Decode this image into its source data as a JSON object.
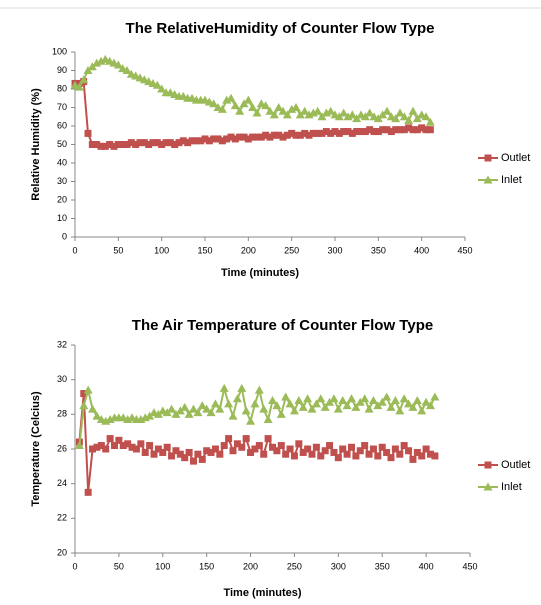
{
  "chart_data": [
    {
      "type": "line",
      "title": "The RelativeHumidity of Counter Flow Type",
      "x_label": "Time (minutes)",
      "y_label": "Relative Humidity (%)",
      "x": [
        0,
        5,
        10,
        15,
        20,
        25,
        30,
        35,
        40,
        45,
        50,
        55,
        60,
        65,
        70,
        75,
        80,
        85,
        90,
        95,
        100,
        105,
        110,
        115,
        120,
        125,
        130,
        135,
        140,
        145,
        150,
        155,
        160,
        165,
        170,
        175,
        180,
        185,
        190,
        195,
        200,
        205,
        210,
        215,
        220,
        225,
        230,
        235,
        240,
        245,
        250,
        255,
        260,
        265,
        270,
        275,
        280,
        285,
        290,
        295,
        300,
        305,
        310,
        315,
        320,
        325,
        330,
        335,
        340,
        345,
        350,
        355,
        360,
        365,
        370,
        375,
        380,
        385,
        390,
        395,
        400,
        405,
        410
      ],
      "series": [
        {
          "name": "Outlet",
          "color": "#c0504d",
          "marker": "square",
          "values": [
            83,
            83,
            84,
            56,
            50,
            50,
            49,
            49,
            50,
            49,
            50,
            50,
            50,
            51,
            50,
            51,
            51,
            50,
            51,
            51,
            50,
            51,
            51,
            50,
            51,
            52,
            51,
            52,
            52,
            52,
            53,
            52,
            53,
            53,
            52,
            53,
            54,
            53,
            54,
            54,
            53,
            54,
            54,
            54,
            55,
            54,
            55,
            55,
            54,
            55,
            56,
            55,
            55,
            56,
            55,
            56,
            56,
            56,
            57,
            56,
            57,
            56,
            57,
            57,
            56,
            57,
            57,
            57,
            58,
            57,
            57,
            58,
            58,
            57,
            58,
            58,
            58,
            59,
            58,
            58,
            59,
            58,
            58
          ]
        },
        {
          "name": "Inlet",
          "color": "#9bbb59",
          "marker": "triangle",
          "values": [
            82,
            81,
            85,
            90,
            92,
            94,
            95,
            96,
            95,
            94,
            93,
            91,
            90,
            88,
            87,
            86,
            85,
            84,
            83,
            82,
            80,
            78,
            78,
            77,
            76,
            76,
            75,
            75,
            74,
            74,
            74,
            73,
            72,
            70,
            69,
            74,
            75,
            71,
            68,
            72,
            74,
            70,
            67,
            72,
            71,
            68,
            66,
            70,
            68,
            66,
            69,
            70,
            66,
            68,
            66,
            67,
            68,
            65,
            67,
            68,
            66,
            65,
            67,
            65,
            66,
            64,
            66,
            65,
            67,
            65,
            64,
            66,
            68,
            65,
            64,
            67,
            65,
            63,
            68,
            64,
            66,
            65,
            62
          ]
        }
      ],
      "xlim": [
        0,
        450
      ],
      "xticks": [
        0,
        50,
        100,
        150,
        200,
        250,
        300,
        350,
        400,
        450
      ],
      "ylim": [
        0,
        100
      ],
      "yticks": [
        0,
        10,
        20,
        30,
        40,
        50,
        60,
        70,
        80,
        90,
        100
      ],
      "legend": "right"
    },
    {
      "type": "line",
      "title": "The Air Temperature  of Counter Flow Type",
      "x_label": "Time (minutes)",
      "y_label": "Temperature (Celcius)",
      "x": [
        5,
        10,
        15,
        20,
        25,
        30,
        35,
        40,
        45,
        50,
        55,
        60,
        65,
        70,
        75,
        80,
        85,
        90,
        95,
        100,
        105,
        110,
        115,
        120,
        125,
        130,
        135,
        140,
        145,
        150,
        155,
        160,
        165,
        170,
        175,
        180,
        185,
        190,
        195,
        200,
        205,
        210,
        215,
        220,
        225,
        230,
        235,
        240,
        245,
        250,
        255,
        260,
        265,
        270,
        275,
        280,
        285,
        290,
        295,
        300,
        305,
        310,
        315,
        320,
        325,
        330,
        335,
        340,
        345,
        350,
        355,
        360,
        365,
        370,
        375,
        380,
        385,
        390,
        395,
        400,
        405,
        410
      ],
      "series": [
        {
          "name": "Outlet",
          "color": "#c0504d",
          "marker": "square",
          "values": [
            26.4,
            29.2,
            23.5,
            26.0,
            26.1,
            26.2,
            26.0,
            26.6,
            26.2,
            26.5,
            26.2,
            26.3,
            26.1,
            26.0,
            26.3,
            25.8,
            26.2,
            25.7,
            26.0,
            25.8,
            26.1,
            25.6,
            25.9,
            25.7,
            25.5,
            25.8,
            25.3,
            25.7,
            25.4,
            25.9,
            25.8,
            26.0,
            25.7,
            26.2,
            26.6,
            25.9,
            26.3,
            26.1,
            26.6,
            25.8,
            26.0,
            26.2,
            25.7,
            26.6,
            26.1,
            25.9,
            26.2,
            25.7,
            26.0,
            25.6,
            26.3,
            25.8,
            26.0,
            25.7,
            26.1,
            25.6,
            25.9,
            26.2,
            25.8,
            25.5,
            26.0,
            25.7,
            26.1,
            25.6,
            25.9,
            26.2,
            25.7,
            26.0,
            25.6,
            26.1,
            25.8,
            25.5,
            26.0,
            25.7,
            26.2,
            25.9,
            25.4,
            25.8,
            25.6,
            26.0,
            25.7,
            25.6
          ]
        },
        {
          "name": "Inlet",
          "color": "#9bbb59",
          "marker": "triangle",
          "values": [
            26.2,
            28.5,
            29.4,
            28.3,
            27.9,
            27.7,
            27.6,
            27.7,
            27.8,
            27.8,
            27.8,
            27.7,
            27.8,
            27.7,
            27.7,
            27.8,
            27.9,
            28.1,
            28.0,
            28.2,
            28.1,
            28.3,
            28.0,
            28.2,
            28.4,
            28.0,
            28.3,
            28.1,
            28.5,
            28.3,
            28.1,
            28.6,
            28.3,
            29.5,
            28.6,
            27.9,
            28.9,
            29.5,
            28.2,
            27.6,
            28.6,
            29.4,
            28.3,
            27.7,
            28.8,
            28.5,
            28.0,
            29.0,
            28.6,
            28.2,
            28.8,
            28.4,
            28.9,
            28.3,
            28.6,
            28.9,
            28.4,
            28.7,
            28.9,
            28.3,
            28.8,
            28.5,
            28.9,
            28.4,
            28.7,
            28.9,
            28.3,
            28.8,
            28.5,
            28.7,
            29.0,
            28.4,
            28.8,
            28.2,
            28.9,
            28.6,
            28.4,
            28.8,
            28.2,
            28.7,
            28.5,
            29.0
          ]
        }
      ],
      "xlim": [
        0,
        450
      ],
      "xticks": [
        0,
        50,
        100,
        150,
        200,
        250,
        300,
        350,
        400,
        450
      ],
      "ylim": [
        20,
        32
      ],
      "yticks": [
        20,
        22,
        24,
        26,
        28,
        30,
        32
      ],
      "legend": "right"
    }
  ]
}
